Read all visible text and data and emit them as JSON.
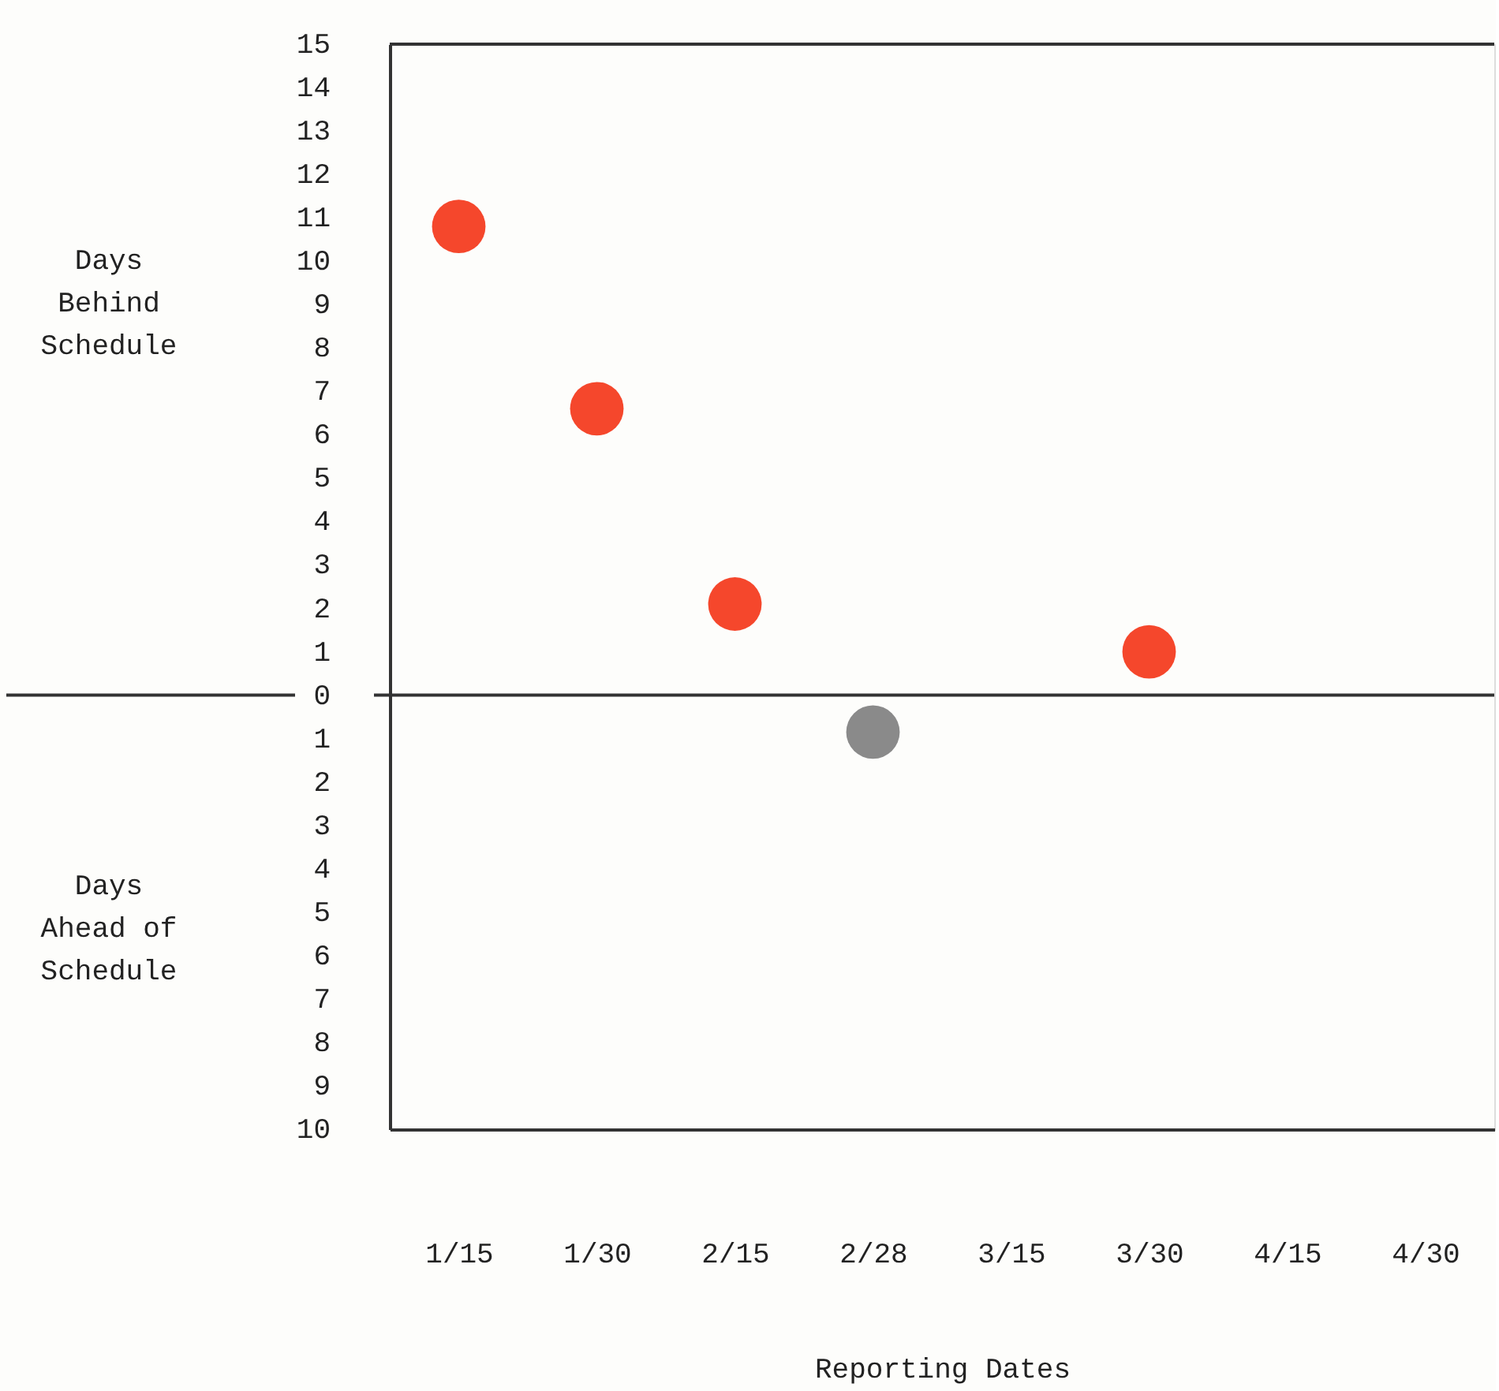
{
  "chart_data": {
    "type": "scatter",
    "categories": [
      "1/15",
      "1/30",
      "2/15",
      "2/28",
      "3/15",
      "3/30",
      "4/15",
      "4/30"
    ],
    "values": [
      10.8,
      6.6,
      2.1,
      -0.85,
      null,
      1.0,
      null,
      null
    ],
    "colors": [
      "#f5472c",
      "#f5472c",
      "#f5472c",
      "#8a8a8a",
      "#f5472c",
      "#f5472c",
      "#f5472c",
      "#f5472c"
    ],
    "ylabel": "Days Behind Schedule",
    "annotations": [
      "Days Ahead of Schedule"
    ],
    "xlabel": "Reporting Dates",
    "ylim": [
      -10,
      15
    ],
    "yticks": [
      {
        "value": -10,
        "label": "10"
      },
      {
        "value": -9,
        "label": "9"
      },
      {
        "value": -8,
        "label": "8"
      },
      {
        "value": -7,
        "label": "7"
      },
      {
        "value": -6,
        "label": "6"
      },
      {
        "value": -5,
        "label": "5"
      },
      {
        "value": -4,
        "label": "4"
      },
      {
        "value": -3,
        "label": "3"
      },
      {
        "value": -2,
        "label": "2"
      },
      {
        "value": -1,
        "label": "1"
      },
      0,
      1,
      2,
      3,
      4,
      5,
      6,
      7,
      8,
      9,
      10,
      11,
      12,
      13,
      14,
      15
    ],
    "ref_lines": [
      {
        "axis": "y",
        "value": 0,
        "color": "#333333"
      }
    ],
    "marker": "circle",
    "grid": false
  }
}
